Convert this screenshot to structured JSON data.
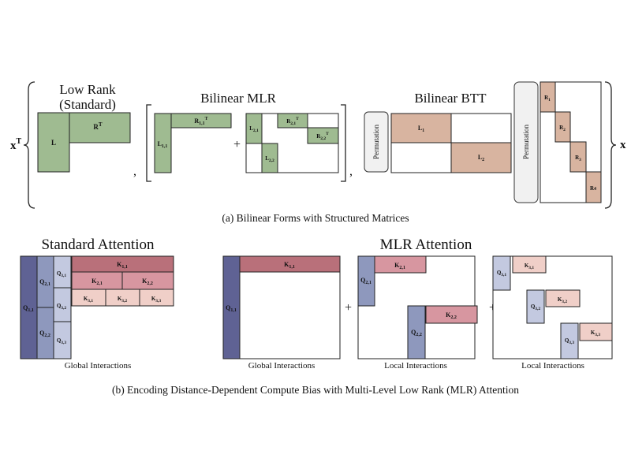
{
  "top": {
    "x_transpose": "x",
    "x_transpose_sup": "T",
    "x_right": "x",
    "low_rank_title_1": "Low Rank",
    "low_rank_title_2": "(Standard)",
    "low_rank_L": "L",
    "low_rank_R": "R",
    "low_rank_R_sup": "T",
    "mlr_title": "Bilinear MLR",
    "mlr_L11": "L",
    "mlr_L11_sub": "1,1",
    "mlr_R11": "R",
    "mlr_R11_sub": "1,1",
    "mlr_R11_sup": "T",
    "mlr_L21": "L",
    "mlr_L21_sub": "2,1",
    "mlr_L22": "L",
    "mlr_L22_sub": "2,2",
    "mlr_R21": "R",
    "mlr_R21_sub": "2,1",
    "mlr_R21_sup": "T",
    "mlr_R22": "R",
    "mlr_R22_sub": "2,2",
    "mlr_R22_sup": "T",
    "plus": "+",
    "comma": ",",
    "btt_title": "Bilinear BTT",
    "perm_label": "Permutation",
    "btt_L1": "L",
    "btt_L1_sub": "1",
    "btt_L2": "L",
    "btt_L2_sub": "2",
    "btt_R1": "R",
    "btt_R1_sub": "1",
    "btt_R2": "R",
    "btt_R2_sub": "2",
    "btt_R3": "R",
    "btt_R3_sub": "3",
    "btt_R4": "R",
    "btt_R4_sub": "4",
    "caption": "(a) Bilinear Forms with Structured Matrices"
  },
  "bottom": {
    "standard_title": "Standard Attention",
    "mlr_title": "MLR Attention",
    "global_interactions": "Global Interactions",
    "local_interactions": "Local Interactions",
    "plus": "+",
    "Q": "Q",
    "K": "K",
    "sub_11": "1,1",
    "sub_21": "2,1",
    "sub_22": "2,2",
    "sub_31": "3,1",
    "sub_32": "3,2",
    "sub_33": "3,3",
    "caption": "(b) Encoding Distance-Dependent Compute Bias with Multi-Level Low Rank (MLR) Attention"
  },
  "colors": {
    "green": "#9fbb91",
    "tan": "#d8b4a0",
    "q_dark": "#5f6294",
    "q_mid": "#8e98bd",
    "q_light": "#c3c9e0",
    "k_dark": "#b9707a",
    "k_mid": "#d796a0",
    "k_light": "#f0cfc8"
  }
}
